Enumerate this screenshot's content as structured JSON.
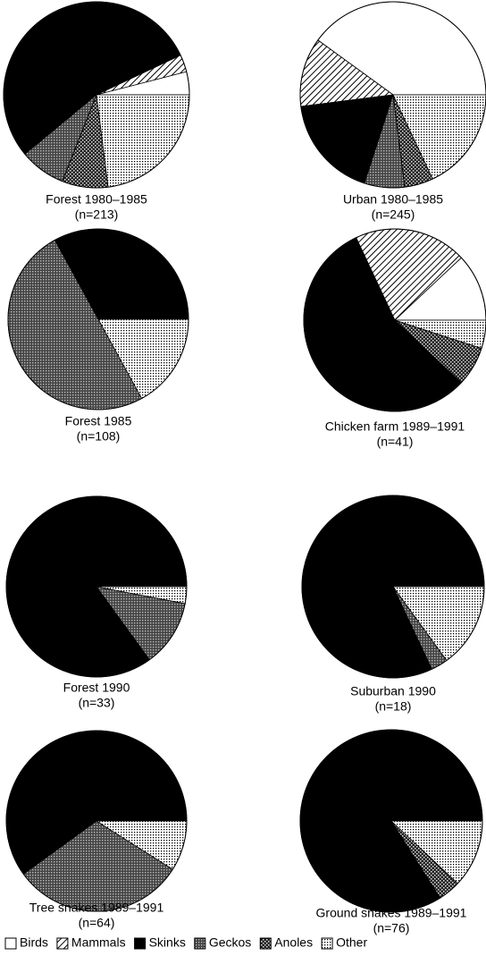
{
  "legend": {
    "labels": [
      "Birds",
      "Mammals",
      "Skinks",
      "Geckos",
      "Anoles",
      "Other"
    ],
    "fills": [
      "white",
      "hatch",
      "black",
      "dense-dots",
      "cross",
      "dots"
    ]
  },
  "chart_data": [
    {
      "type": "pie",
      "title": "Forest 1980–1985",
      "subtitle": "(n=213)",
      "values": [
        4,
        3,
        54,
        8,
        8,
        23
      ]
    },
    {
      "type": "pie",
      "title": "Urban 1980–1985",
      "subtitle": "(n=245)",
      "values": [
        40,
        12,
        18,
        7,
        5,
        18
      ]
    },
    {
      "type": "pie",
      "title": "Forest 1985",
      "subtitle": "(n=108)",
      "values": [
        0,
        0,
        33,
        50,
        0,
        17
      ]
    },
    {
      "type": "pie",
      "title": "Chicken farm 1989–1991",
      "subtitle": "(n=41)",
      "values": [
        12,
        20,
        56,
        0,
        7,
        5
      ]
    },
    {
      "type": "pie",
      "title": "Forest 1990",
      "subtitle": "(n=33)",
      "values": [
        0,
        0,
        85,
        12,
        0,
        3
      ]
    },
    {
      "type": "pie",
      "title": "Suburban 1990",
      "subtitle": "(n=18)",
      "values": [
        0,
        0,
        82,
        3,
        0,
        15
      ]
    },
    {
      "type": "pie",
      "title": "Tree snakes 1989–1991",
      "subtitle": "(n=64)",
      "values": [
        0,
        0,
        60,
        31,
        0,
        9
      ]
    },
    {
      "type": "pie",
      "title": "Ground snakes 1989–1991",
      "subtitle": "(n=76)",
      "values": [
        0,
        0,
        84,
        0,
        4,
        12
      ]
    }
  ]
}
